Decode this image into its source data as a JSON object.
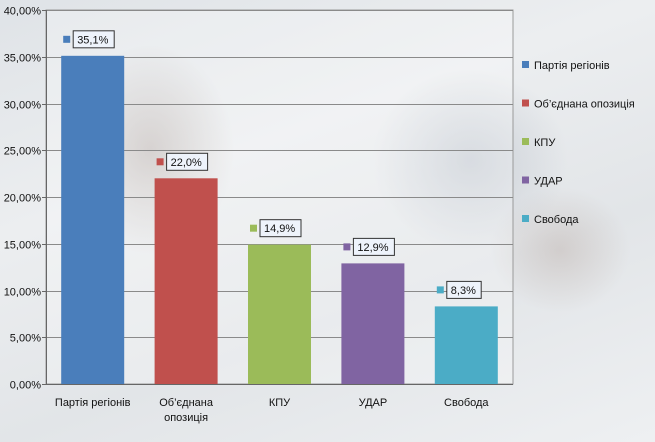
{
  "chart_data": {
    "type": "bar",
    "categories": [
      "Партія регіонів",
      "Об’єднана опозиція",
      "КПУ",
      "УДАР",
      "Свобода"
    ],
    "category_lines": [
      [
        "Партія регіонів"
      ],
      [
        "Об’єднана",
        "опозиція"
      ],
      [
        "КПУ"
      ],
      [
        "УДАР"
      ],
      [
        "Свобода"
      ]
    ],
    "values": [
      35.1,
      22.0,
      14.9,
      12.9,
      8.3
    ],
    "data_labels": [
      "35,1%",
      "22,0%",
      "14,9%",
      "12,9%",
      "8,3%"
    ],
    "colors": [
      "#4a7ebb",
      "#c0504d",
      "#9bbb59",
      "#8064a2",
      "#4bacc6"
    ],
    "y_ticks": [
      0,
      5,
      10,
      15,
      20,
      25,
      30,
      35,
      40
    ],
    "y_tick_labels": [
      "0,00%",
      "5,00%",
      "10,00%",
      "15,00%",
      "20,00%",
      "25,00%",
      "30,00%",
      "35,00%",
      "40,00%"
    ],
    "ylim": [
      0,
      40
    ],
    "grid": true,
    "legend_position": "right",
    "title": "",
    "xlabel": "",
    "ylabel": ""
  }
}
